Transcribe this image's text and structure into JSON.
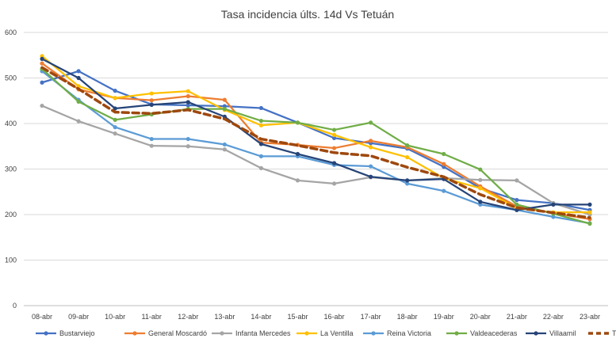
{
  "chart_data": {
    "type": "line",
    "title": "Tasa incidencia últs. 14d Vs Tetuán",
    "xlabel": "",
    "ylabel": "",
    "ylim": [
      0,
      600
    ],
    "yticks": [
      0,
      100,
      200,
      300,
      400,
      500,
      600
    ],
    "grid": true,
    "legend_position": "bottom",
    "categories": [
      "08-abr",
      "09-abr",
      "10-abr",
      "11-abr",
      "12-abr",
      "13-abr",
      "14-abr",
      "15-abr",
      "16-abr",
      "17-abr",
      "18-abr",
      "19-abr",
      "20-abr",
      "21-abr",
      "22-abr",
      "23-abr"
    ],
    "series": [
      {
        "name": "Bustarviejo",
        "color": "#4472c4",
        "dashed": false,
        "values": [
          490,
          515,
          472,
          442,
          440,
          438,
          434,
          402,
          368,
          357,
          345,
          305,
          258,
          232,
          225,
          210
        ]
      },
      {
        "name": "General Moscardó",
        "color": "#ed7d31",
        "dashed": false,
        "values": [
          532,
          475,
          456,
          451,
          460,
          452,
          358,
          353,
          346,
          362,
          348,
          311,
          262,
          218,
          203,
          190
        ]
      },
      {
        "name": "Infanta Mercedes",
        "color": "#a5a5a5",
        "dashed": false,
        "values": [
          439,
          405,
          378,
          351,
          350,
          343,
          302,
          275,
          268,
          282,
          275,
          280,
          276,
          275,
          225,
          200
        ]
      },
      {
        "name": "La Ventilla",
        "color": "#ffc000",
        "dashed": false,
        "values": [
          548,
          482,
          456,
          466,
          471,
          430,
          396,
          402,
          375,
          348,
          326,
          280,
          258,
          214,
          205,
          205
        ]
      },
      {
        "name": "Reina Victoria",
        "color": "#5b9bd5",
        "dashed": false,
        "values": [
          515,
          452,
          392,
          366,
          366,
          354,
          328,
          328,
          309,
          306,
          268,
          252,
          222,
          210,
          195,
          181
        ]
      },
      {
        "name": "Valdeacederas",
        "color": "#70ad47",
        "dashed": false,
        "values": [
          520,
          448,
          408,
          420,
          432,
          432,
          406,
          402,
          386,
          402,
          352,
          333,
          299,
          222,
          202,
          180
        ]
      },
      {
        "name": "Villaamil",
        "color": "#264478",
        "dashed": false,
        "values": [
          542,
          500,
          433,
          441,
          447,
          415,
          355,
          333,
          313,
          283,
          275,
          278,
          228,
          210,
          222,
          222
        ]
      },
      {
        "name": "TETUAN",
        "color": "#9e480e",
        "dashed": true,
        "values": [
          523,
          476,
          425,
          422,
          430,
          410,
          366,
          352,
          336,
          329,
          304,
          283,
          244,
          215,
          204,
          193
        ]
      }
    ]
  }
}
